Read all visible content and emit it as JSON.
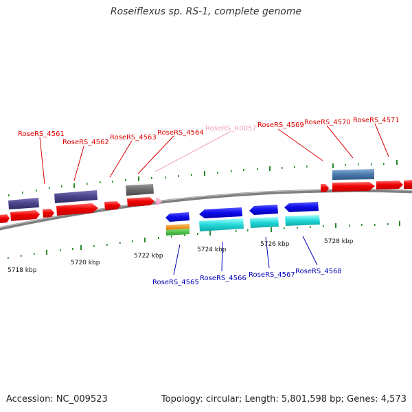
{
  "title": "Roseiflexus sp. RS-1, complete genome",
  "footer": {
    "accession": "Accession: NC_009523",
    "topology": "Topology: circular; Length: 5,801,598 bp; Genes: 4,573"
  },
  "colors": {
    "backbone": "#808080",
    "tick": "#2a8a2a",
    "forward_label": "#dd0000",
    "reverse_label": "#0000bb",
    "rna_label": "#f0a0c0"
  },
  "ruler": {
    "labels": [
      "5718 kbp",
      "5720 kbp",
      "5722 kbp",
      "5724 kbp",
      "5726 kbp",
      "5728 kbp"
    ]
  },
  "forward_labels": [
    "RoseRS_4561",
    "RoseRS_4562",
    "RoseRS_4563",
    "RoseRS_4564",
    "RoseRS_4569",
    "RoseRS_4570",
    "RoseRS_4571"
  ],
  "rna_labels": [
    "RoseRS_R0057"
  ],
  "reverse_labels": [
    "RoseRS_4565",
    "RoseRS_4566",
    "RoseRS_4567",
    "RoseRS_4568"
  ]
}
